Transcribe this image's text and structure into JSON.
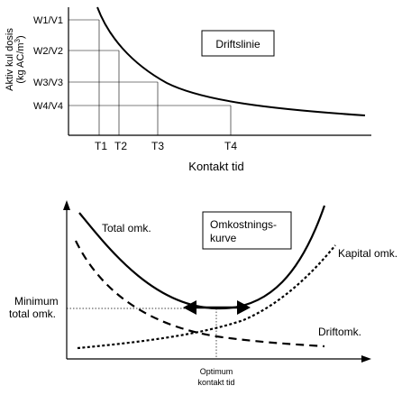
{
  "top": {
    "y_label_line1": "Aktiv kul dosis",
    "y_label_line2": "(kg AC/m",
    "y_label_sup": "3",
    "y_label_close": ")",
    "y_ticks": [
      "W1/V1",
      "W2/V2",
      "W3/V3",
      "W4/V4"
    ],
    "x_ticks": [
      "T1",
      "T2",
      "T3",
      "T4"
    ],
    "x_label": "Kontakt tid",
    "box_label": "Driftslinie"
  },
  "bottom": {
    "box_label_line1": "Omkostnings-",
    "box_label_line2": "kurve",
    "total_label": "Total omk.",
    "kapital_label": "Kapital omk.",
    "drift_label": "Driftomk.",
    "minimum_line1": "Minimum",
    "minimum_line2": "total omk.",
    "optimum_line1": "Optimum",
    "optimum_line2": "kontakt tid"
  }
}
